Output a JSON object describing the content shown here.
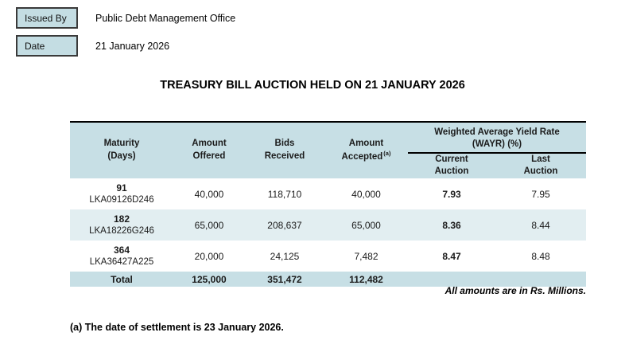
{
  "meta": {
    "issued_by_label": "Issued By",
    "issued_by_value": "Public Debt Management Office",
    "date_label": "Date",
    "date_value": "21 January 2026"
  },
  "title": "TREASURY BILL AUCTION HELD ON 21 JANUARY 2026",
  "table": {
    "headers": {
      "maturity_line1": "Maturity",
      "maturity_line2": "(Days)",
      "offered_line1": "Amount",
      "offered_line2": "Offered",
      "bids_line1": "Bids",
      "bids_line2": "Received",
      "accepted_line1": "Amount",
      "accepted_line2": "Accepted",
      "accepted_sup": "(a)",
      "wayr_line1": "Weighted Average Yield Rate",
      "wayr_line2": "(WAYR) (%)",
      "current_line1": "Current",
      "current_line2": "Auction",
      "last_line1": "Last",
      "last_line2": "Auction"
    },
    "rows": [
      {
        "days": "91",
        "isin": "LKA09126D246",
        "offered": "40,000",
        "bids": "118,710",
        "accepted": "40,000",
        "current": "7.93",
        "last": "7.95"
      },
      {
        "days": "182",
        "isin": "LKA18226G246",
        "offered": "65,000",
        "bids": "208,637",
        "accepted": "65,000",
        "current": "8.36",
        "last": "8.44"
      },
      {
        "days": "364",
        "isin": "LKA36427A225",
        "offered": "20,000",
        "bids": "24,125",
        "accepted": "7,482",
        "current": "8.47",
        "last": "8.48"
      }
    ],
    "total": {
      "label": "Total",
      "offered": "125,000",
      "bids": "351,472",
      "accepted": "112,482"
    }
  },
  "notes": {
    "amounts_note": "All amounts are in Rs. Millions.",
    "footnote": "(a) The date of settlement is 23 January 2026."
  },
  "colors": {
    "header_teal": "#c7dfe5",
    "row_alt": "#e2eef1",
    "box_fill": "#c4dde3"
  }
}
